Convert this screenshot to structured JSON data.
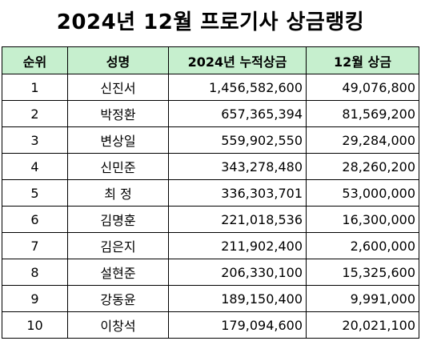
{
  "title": "2024년 12월 프로기사 상금랭킹",
  "table": {
    "headers": {
      "rank": "순위",
      "name": "성명",
      "total": "2024년 누적상금",
      "december": "12월 상금"
    },
    "rows": [
      {
        "rank": "1",
        "name": "신진서",
        "total": "1,456,582,600",
        "december": "49,076,800"
      },
      {
        "rank": "2",
        "name": "박정환",
        "total": "657,365,394",
        "december": "81,569,200"
      },
      {
        "rank": "3",
        "name": "변상일",
        "total": "559,902,550",
        "december": "29,284,000"
      },
      {
        "rank": "4",
        "name": "신민준",
        "total": "343,278,480",
        "december": "28,260,200"
      },
      {
        "rank": "5",
        "name": "최 정",
        "total": "336,303,701",
        "december": "53,000,000"
      },
      {
        "rank": "6",
        "name": "김명훈",
        "total": "221,018,536",
        "december": "16,300,000"
      },
      {
        "rank": "7",
        "name": "김은지",
        "total": "211,902,400",
        "december": "2,600,000"
      },
      {
        "rank": "8",
        "name": "설현준",
        "total": "206,330,100",
        "december": "15,325,600"
      },
      {
        "rank": "9",
        "name": "강동윤",
        "total": "189,150,400",
        "december": "9,991,000"
      },
      {
        "rank": "10",
        "name": "이창석",
        "total": "179,094,600",
        "december": "20,021,100"
      }
    ]
  },
  "colors": {
    "header_bg": "#c6efce",
    "border": "#000000",
    "text": "#000000"
  }
}
